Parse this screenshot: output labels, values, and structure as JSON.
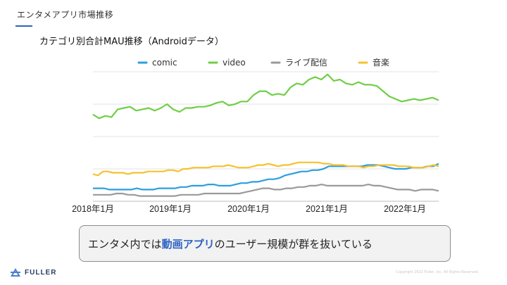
{
  "header": {
    "title": "エンタメアプリ市場推移"
  },
  "chart_data": {
    "type": "line",
    "title": "カテゴリ別合計MAU推移（Androidデータ）",
    "xlabel": "",
    "ylabel": "",
    "x_ticks": [
      "2018年1月",
      "2019年1月",
      "2020年1月",
      "2021年1月",
      "2022年1月"
    ],
    "y_range": [
      0,
      100
    ],
    "grid": true,
    "legend_position": "top",
    "series": [
      {
        "name": "comic",
        "color": "#2d9ee0",
        "values": [
          10,
          10,
          10,
          9,
          9,
          9,
          9,
          9,
          10,
          9,
          9,
          9,
          10,
          10,
          10,
          10,
          11,
          11,
          12,
          12,
          12,
          13,
          13,
          12,
          12,
          12,
          13,
          14,
          14,
          15,
          15,
          16,
          17,
          17,
          18,
          20,
          21,
          22,
          23,
          23,
          24,
          24,
          25,
          27,
          27,
          27,
          27,
          27,
          27,
          27,
          28,
          28,
          28,
          27,
          26,
          25,
          25,
          25,
          26,
          26,
          26,
          27,
          27,
          29
        ]
      },
      {
        "name": "video",
        "color": "#6fcf45",
        "values": [
          67,
          64,
          66,
          65,
          71,
          72,
          73,
          70,
          71,
          72,
          70,
          72,
          75,
          71,
          69,
          72,
          72,
          73,
          73,
          74,
          76,
          77,
          74,
          75,
          77,
          77,
          82,
          85,
          85,
          82,
          83,
          82,
          88,
          91,
          90,
          94,
          96,
          94,
          98,
          93,
          94,
          91,
          90,
          92,
          90,
          90,
          89,
          85,
          81,
          79,
          77,
          78,
          79,
          78,
          79,
          80,
          78
        ]
      },
      {
        "name": "ライブ配信",
        "color": "#9a9a9a",
        "values": [
          5,
          5,
          5,
          5,
          6,
          6,
          5,
          5,
          4,
          4,
          4,
          4,
          4,
          4,
          4,
          5,
          5,
          5,
          5,
          6,
          6,
          6,
          6,
          6,
          6,
          6,
          7,
          8,
          9,
          10,
          10,
          9,
          9,
          10,
          10,
          11,
          11,
          12,
          12,
          13,
          12,
          12,
          12,
          12,
          12,
          12,
          12,
          13,
          12,
          12,
          11,
          10,
          9,
          9,
          9,
          8,
          9,
          9,
          9,
          8
        ]
      },
      {
        "name": "音楽",
        "color": "#f5c230",
        "values": [
          21,
          20,
          23,
          23,
          22,
          22,
          22,
          21,
          22,
          22,
          22,
          23,
          23,
          23,
          23,
          24,
          24,
          23,
          25,
          25,
          26,
          26,
          26,
          26,
          27,
          27,
          27,
          28,
          27,
          26,
          26,
          26,
          27,
          28,
          28,
          29,
          28,
          27,
          28,
          28,
          29,
          30,
          30,
          30,
          30,
          30,
          29,
          29,
          28,
          28,
          28,
          27,
          27,
          27,
          26,
          27,
          27,
          28,
          28,
          28,
          28,
          27,
          27,
          27,
          26,
          26,
          26,
          27,
          28,
          27
        ]
      }
    ]
  },
  "callout": {
    "prefix": "エンタメ内では",
    "highlight": "動画アプリ",
    "suffix": "のユーザー規模が群を抜いている"
  },
  "footer": {
    "logo_text": "FULLER",
    "copyright": "Copyright 2022 Fuller, Inc. All Rights Reserved."
  }
}
